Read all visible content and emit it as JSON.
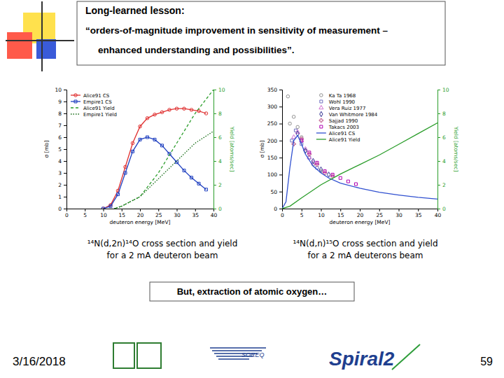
{
  "slide": {
    "header": {
      "title": "Long-learned lesson:",
      "lines": [
        "“orders-of-magnitude improvement in sensitivity of measurement –",
        "enhanced understanding and possibilities”."
      ]
    },
    "footer_box": "But, extraction of atomic oxygen…",
    "date": "3/16/2018",
    "page": "59",
    "logos": [
      "SOREQ",
      "Spiral2"
    ]
  },
  "chart_data": [
    {
      "type": "line",
      "title": "¹⁴N(d,2n)¹⁴O cross section and yield",
      "subtitle": "for a 2 mA deuteron beam",
      "xlabel": "deuteron energy [MeV]",
      "ylabel": "σ [mb]",
      "y2label": "Yield [atoms/sec]",
      "xlim": [
        0,
        40
      ],
      "xticks": [
        0,
        5,
        10,
        15,
        20,
        25,
        30,
        35,
        40
      ],
      "ylim": [
        0,
        10
      ],
      "yticks": [
        0,
        1,
        2,
        3,
        4,
        5,
        6,
        7,
        8,
        9,
        10
      ],
      "y2lim": [
        0,
        10
      ],
      "y2ticks": [
        0,
        2,
        4,
        6,
        8,
        10
      ],
      "legend": "upper left",
      "series": [
        {
          "name": "Alice91 CS",
          "color": "#e03030",
          "marker": "circle",
          "line_style": "solid",
          "x": [
            10,
            12,
            14,
            16,
            18,
            20,
            22,
            24,
            26,
            28,
            30,
            32,
            34,
            36,
            38
          ],
          "values": [
            0,
            0.3,
            1.5,
            3.5,
            5.5,
            6.9,
            7.6,
            7.9,
            8.1,
            8.3,
            8.4,
            8.4,
            8.3,
            8.2,
            8.0
          ]
        },
        {
          "name": "Empire1 CS",
          "color": "#2040c0",
          "marker": "square",
          "line_style": "solid",
          "x": [
            10,
            12,
            14,
            16,
            18,
            20,
            22,
            24,
            26,
            28,
            30,
            32,
            34,
            36,
            38
          ],
          "values": [
            0,
            0.2,
            1.2,
            3.0,
            4.8,
            5.8,
            6.0,
            5.8,
            5.3,
            4.6,
            3.9,
            3.2,
            2.6,
            2.1,
            1.6
          ]
        },
        {
          "name": "Alice91 Yield",
          "color": "#2a9d2a",
          "line_style": "dashed",
          "axis": "y2",
          "x": [
            13,
            15,
            20,
            25,
            30,
            35,
            40
          ],
          "values": [
            0,
            0.2,
            1.0,
            3.0,
            5.5,
            8.0,
            10.0
          ]
        },
        {
          "name": "Empire1 Yield",
          "color": "#156b15",
          "line_style": "dotted",
          "axis": "y2",
          "x": [
            13,
            15,
            20,
            25,
            30,
            35,
            40
          ],
          "values": [
            0,
            0.2,
            1.0,
            2.5,
            4.0,
            5.5,
            6.5
          ]
        }
      ]
    },
    {
      "type": "line",
      "title": "¹⁴N(d,n)¹⁵O cross section and yield",
      "subtitle": "for a 2 mA deuterons beam",
      "xlabel": "deuteron energy [MeV]",
      "ylabel": "σ [mb]",
      "y2label": "Yield [atoms/sec]",
      "xlim": [
        0,
        40
      ],
      "xticks": [
        0,
        5,
        10,
        15,
        20,
        25,
        30,
        35,
        40
      ],
      "ylim": [
        0,
        350
      ],
      "yticks": [
        0,
        50,
        100,
        150,
        200,
        250,
        300,
        350
      ],
      "y2lim": [
        0,
        10
      ],
      "y2ticks": [
        0,
        2,
        4,
        6,
        8,
        10
      ],
      "legend": "upper center",
      "series": [
        {
          "name": "Ka Ta 1968",
          "type": "scatter",
          "color": "#909090",
          "marker": "circle",
          "x": [
            1.5,
            2,
            3,
            4,
            5,
            6,
            8,
            10
          ],
          "values": [
            330,
            250,
            270,
            240,
            210,
            170,
            130,
            110
          ]
        },
        {
          "name": "Wohl 1990",
          "type": "scatter",
          "color": "#7070c0",
          "marker": "square",
          "x": [
            2.5,
            3.5,
            5,
            7,
            9
          ],
          "values": [
            200,
            230,
            190,
            150,
            120
          ]
        },
        {
          "name": "Vera Ruiz 1977",
          "type": "scatter",
          "color": "#d070d0",
          "marker": "triangle",
          "x": [
            3,
            4,
            5,
            6,
            7,
            8
          ],
          "values": [
            210,
            225,
            200,
            175,
            150,
            135
          ]
        },
        {
          "name": "Van Whitmore 1984",
          "type": "scatter",
          "color": "#303090",
          "marker": "diamond",
          "x": [
            4,
            6,
            8,
            10,
            12
          ],
          "values": [
            220,
            170,
            140,
            115,
            100
          ]
        },
        {
          "name": "Sajjad 1990",
          "type": "scatter",
          "color": "#c06090",
          "marker": "cross",
          "x": [
            3,
            5,
            7,
            9,
            11,
            13
          ],
          "values": [
            190,
            205,
            160,
            130,
            105,
            95
          ]
        },
        {
          "name": "Takacs 2003",
          "type": "scatter",
          "color": "#b000b0",
          "marker": "square",
          "x": [
            5,
            7,
            9,
            11,
            13,
            15,
            17,
            19
          ],
          "values": [
            200,
            165,
            135,
            110,
            100,
            90,
            80,
            72
          ]
        },
        {
          "name": "Alice91 CS",
          "type": "line",
          "color": "#3050d0",
          "line_style": "solid",
          "x": [
            0,
            1,
            2,
            3,
            4,
            5,
            6,
            8,
            10,
            12,
            15,
            20,
            25,
            30,
            35,
            40
          ],
          "values": [
            0,
            20,
            120,
            200,
            215,
            190,
            160,
            125,
            105,
            90,
            75,
            60,
            48,
            40,
            33,
            28
          ]
        },
        {
          "name": "Alice91 Yield",
          "type": "line",
          "color": "#2a9d2a",
          "line_style": "solid",
          "axis": "y2",
          "x": [
            0,
            2,
            5,
            10,
            15,
            20,
            25,
            30,
            35,
            40
          ],
          "values": [
            0,
            0.2,
            0.9,
            2.0,
            2.9,
            3.7,
            4.5,
            5.4,
            6.3,
            7.2
          ]
        }
      ]
    }
  ]
}
